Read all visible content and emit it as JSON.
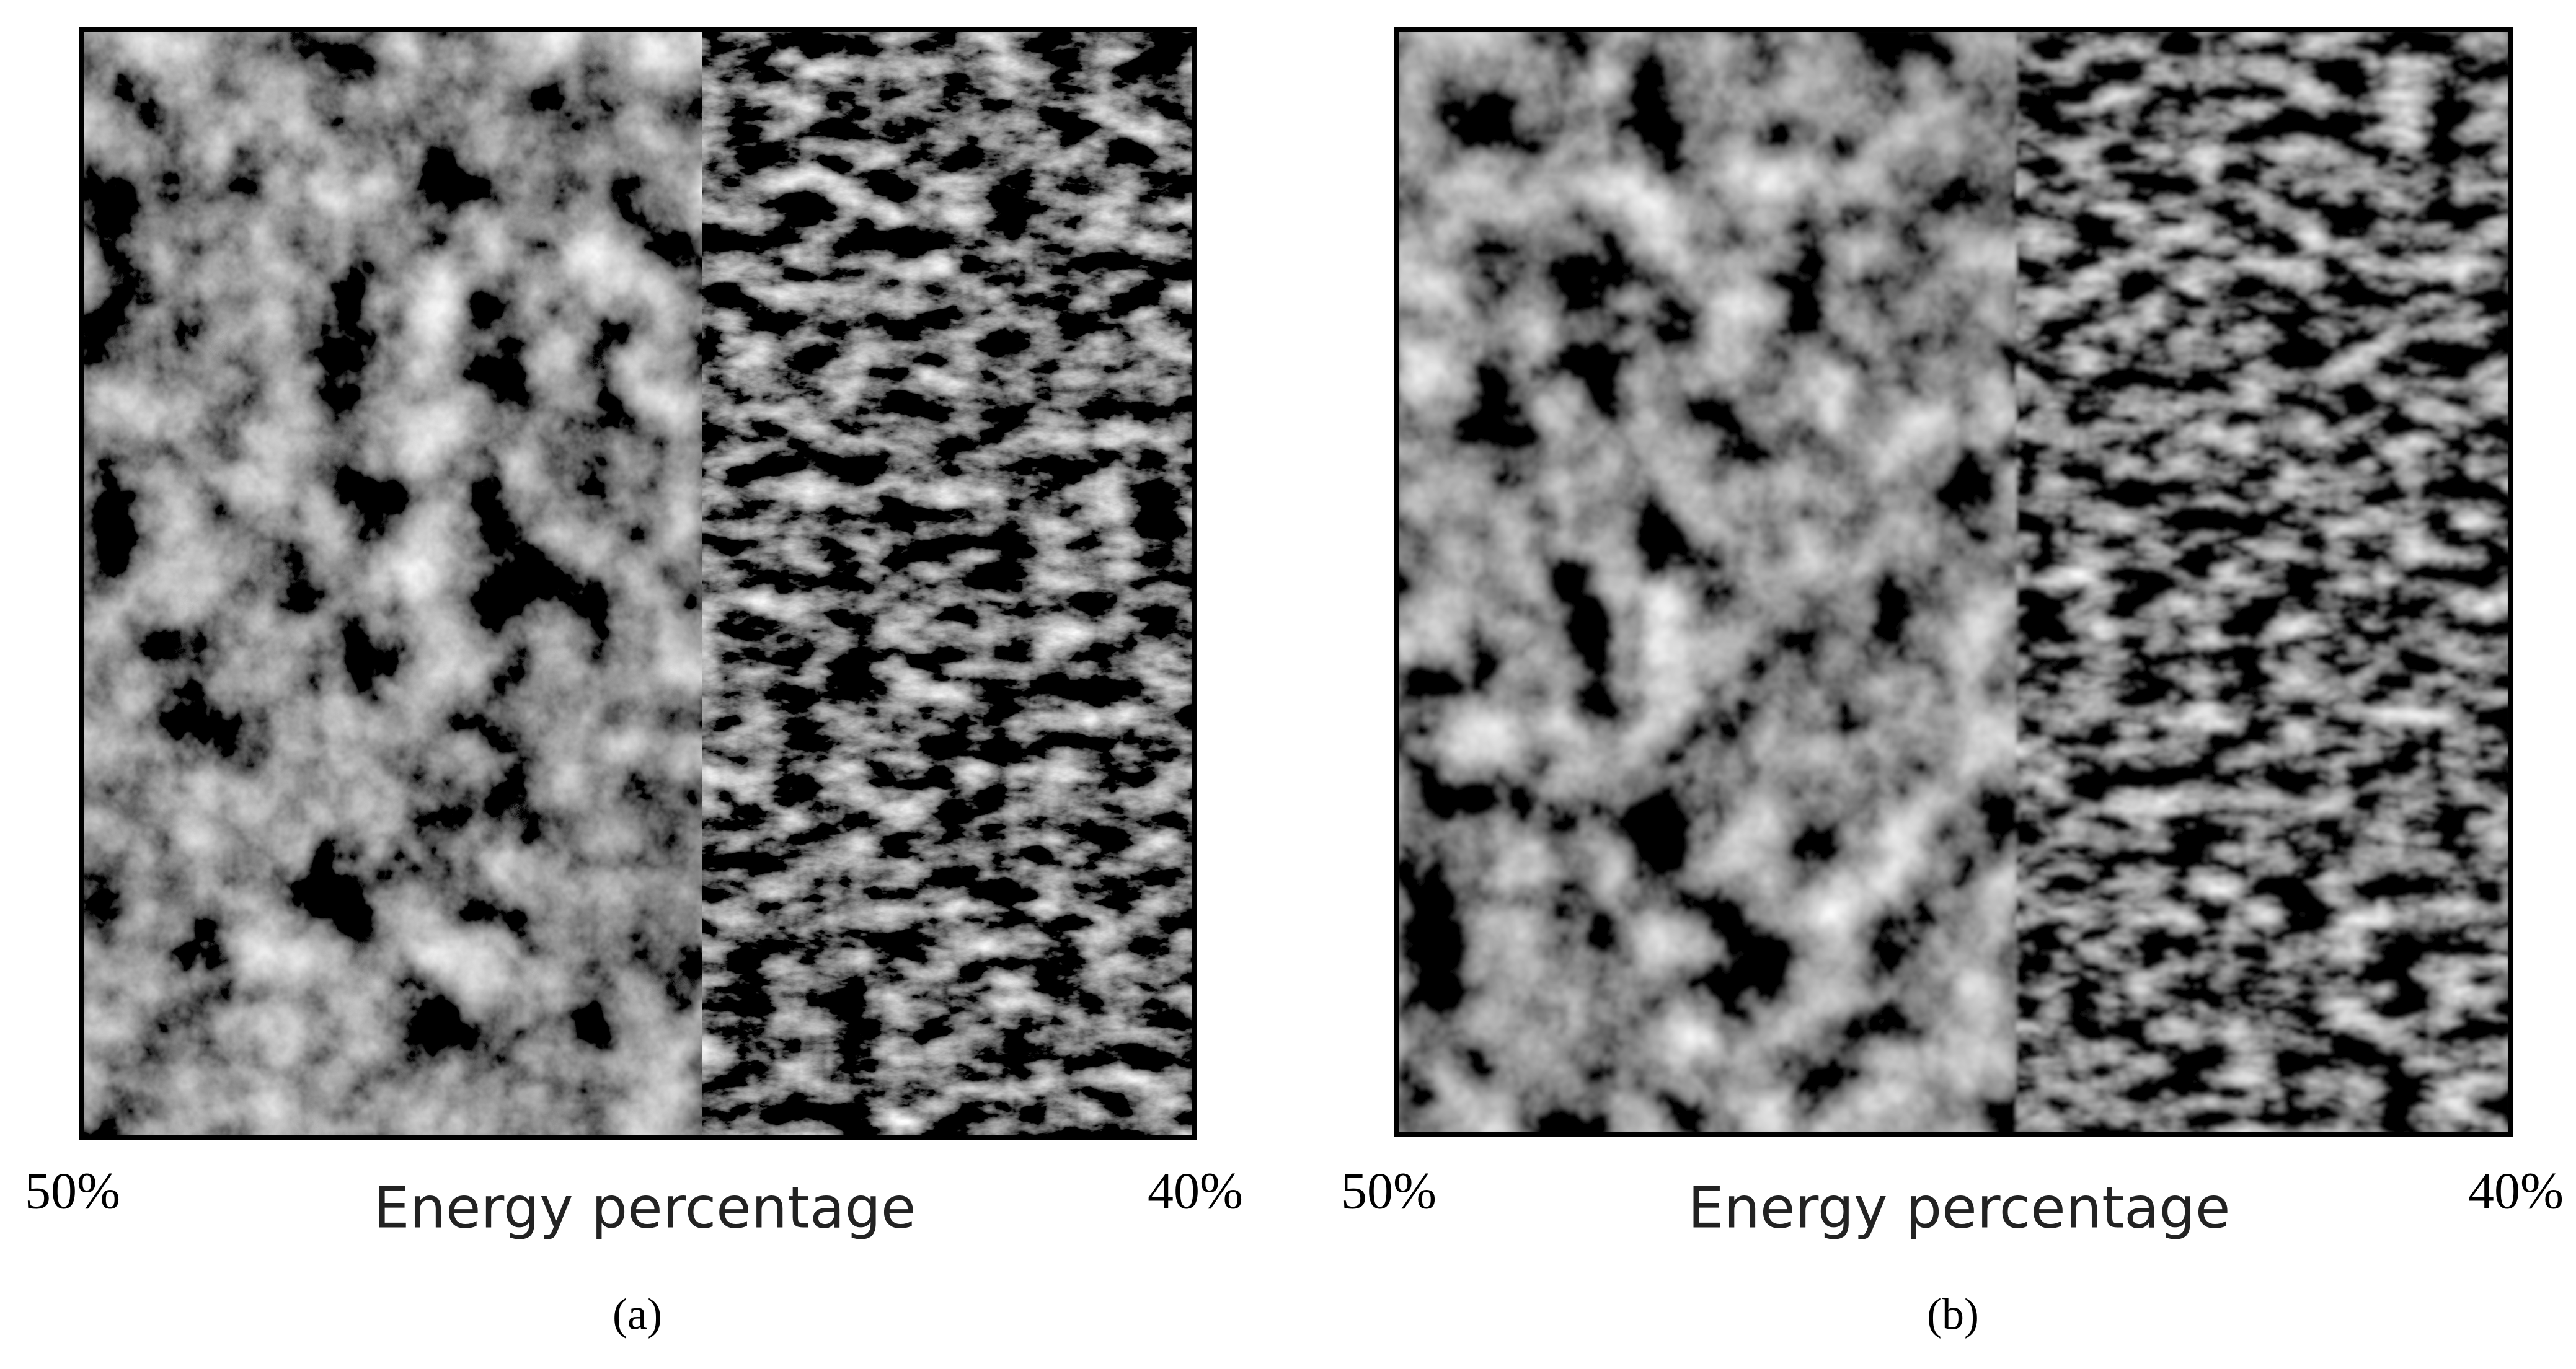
{
  "panels": [
    {
      "left_label": "50%",
      "axis_label": "Energy percentage",
      "right_label": "40%",
      "caption": "(a)"
    },
    {
      "left_label": "50%",
      "axis_label": "Energy percentage",
      "right_label": "40%",
      "caption": "(b)"
    }
  ]
}
